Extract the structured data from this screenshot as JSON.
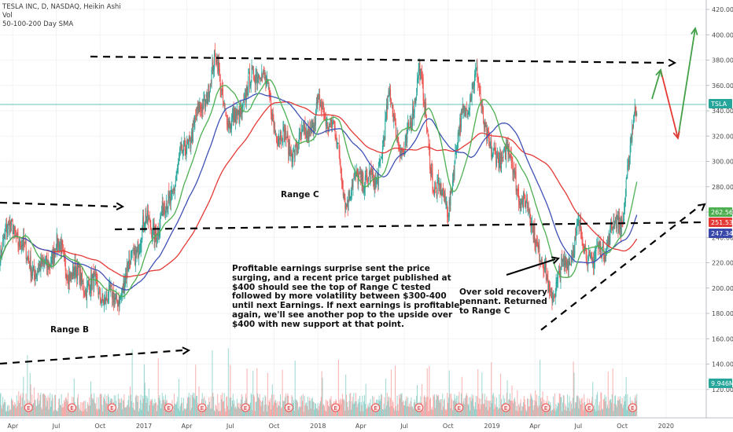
{
  "header": {
    "title": "TESLA INC, D, NASDAQ, Heikin Ashi",
    "volume_label": "Vol",
    "sma_label": "50-100-200 Day SMA"
  },
  "annotations": {
    "range_b": "Range B",
    "range_c": "Range C",
    "main_note": "Profitable earnings surprise sent the price\nsurging, and a recent price target published at\n$400 should see the top of Range C tested\nfollowed by more volatility between $300-400\nuntil next Earnings. If next earnings is profitable\nagain, we'll see another pop to the upside over\n$400 with new support at that point.",
    "recovery_note": "Over sold recovery\npennant. Returned\nto Range C"
  },
  "price_tags": [
    {
      "label": "TSLA",
      "color": "#26a69a"
    },
    {
      "label": "262.56",
      "color": "#4caf50"
    },
    {
      "label": "251.53",
      "color": "#e53935"
    },
    {
      "label": "247.34",
      "color": "#3949ab"
    },
    {
      "label": "9.946M",
      "color": "#26a69a"
    }
  ],
  "earnings_marker": "E",
  "colors": {
    "up": "#26a69a",
    "down": "#ef5350",
    "sma50": "#4caf50",
    "sma100": "#3f51b5",
    "sma200": "#e53935",
    "current_price_line": "#26a69a"
  },
  "chart_data": {
    "type": "candlestick",
    "x_tick_labels": [
      "Apr",
      "Jul",
      "Oct",
      "2017",
      "Apr",
      "Jul",
      "Oct",
      "2018",
      "Apr",
      "Jul",
      "Oct",
      "2019",
      "Apr",
      "Jul",
      "Oct",
      "2020"
    ],
    "y_tick_labels": [
      "120.00",
      "140.00",
      "160.00",
      "180.00",
      "200.00",
      "220.00",
      "240.00",
      "260.00",
      "280.00",
      "300.00",
      "320.00",
      "340.00",
      "360.00",
      "380.00",
      "400.00",
      "420.00"
    ],
    "ylim": [
      110,
      425
    ],
    "price_path_monthly": [
      {
        "date": "2016-03",
        "close": 228
      },
      {
        "date": "2016-04",
        "close": 250
      },
      {
        "date": "2016-05",
        "close": 222
      },
      {
        "date": "2016-06",
        "close": 212
      },
      {
        "date": "2016-07",
        "close": 234
      },
      {
        "date": "2016-08",
        "close": 212
      },
      {
        "date": "2016-09",
        "close": 204
      },
      {
        "date": "2016-10",
        "close": 197
      },
      {
        "date": "2016-11",
        "close": 188
      },
      {
        "date": "2016-12",
        "close": 215
      },
      {
        "date": "2017-01",
        "close": 250
      },
      {
        "date": "2017-02",
        "close": 248
      },
      {
        "date": "2017-03",
        "close": 278
      },
      {
        "date": "2017-04",
        "close": 315
      },
      {
        "date": "2017-05",
        "close": 340
      },
      {
        "date": "2017-06",
        "close": 380
      },
      {
        "date": "2017-07",
        "close": 325
      },
      {
        "date": "2017-08",
        "close": 350
      },
      {
        "date": "2017-09",
        "close": 378
      },
      {
        "date": "2017-10",
        "close": 330
      },
      {
        "date": "2017-11",
        "close": 310
      },
      {
        "date": "2017-12",
        "close": 315
      },
      {
        "date": "2018-01",
        "close": 342
      },
      {
        "date": "2018-02",
        "close": 330
      },
      {
        "date": "2018-03",
        "close": 270
      },
      {
        "date": "2018-04",
        "close": 290
      },
      {
        "date": "2018-05",
        "close": 280
      },
      {
        "date": "2018-06",
        "close": 350
      },
      {
        "date": "2018-07",
        "close": 300
      },
      {
        "date": "2018-08",
        "close": 375
      },
      {
        "date": "2018-09",
        "close": 280
      },
      {
        "date": "2018-10",
        "close": 265
      },
      {
        "date": "2018-11",
        "close": 340
      },
      {
        "date": "2018-12",
        "close": 365
      },
      {
        "date": "2019-01",
        "close": 300
      },
      {
        "date": "2019-02",
        "close": 310
      },
      {
        "date": "2019-03",
        "close": 275
      },
      {
        "date": "2019-04",
        "close": 245
      },
      {
        "date": "2019-05",
        "close": 195
      },
      {
        "date": "2019-06",
        "close": 215
      },
      {
        "date": "2019-07",
        "close": 245
      },
      {
        "date": "2019-08",
        "close": 220
      },
      {
        "date": "2019-09",
        "close": 240
      },
      {
        "date": "2019-10",
        "close": 255
      },
      {
        "date": "2019-10-25",
        "close": 330
      },
      {
        "date": "2019-11",
        "close": 345
      }
    ],
    "sma_series": [
      {
        "name": "SMA 50",
        "color": "#4caf50"
      },
      {
        "name": "SMA 100",
        "color": "#3f51b5"
      },
      {
        "name": "SMA 200",
        "color": "#e53935"
      }
    ]
  }
}
